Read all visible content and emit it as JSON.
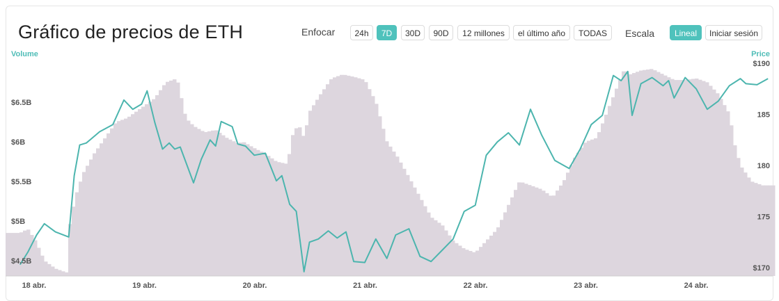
{
  "header": {
    "title": "Gráfico de precios de ETH",
    "zoom_label": "Enfocar",
    "zoom_options": [
      "24h",
      "7D",
      "30D",
      "90D",
      "12 millones",
      "el último año",
      "TODAS"
    ],
    "zoom_active": "7D",
    "scale_label": "Escala",
    "scale_options": [
      "Lineal",
      "Iniciar sesión"
    ],
    "scale_active": "Lineal"
  },
  "colors": {
    "accent": "#4fc2bc",
    "volume_fill": "#ddd6de",
    "price_line": "#4cb5ae"
  },
  "chart_data": {
    "type": "line",
    "x_ticks": [
      "18 abr.",
      "19 abr.",
      "20 abr.",
      "21 abr.",
      "22 abr.",
      "23 abr.",
      "24 abr."
    ],
    "price_axis": {
      "label": "Price",
      "ticks": [
        "$190",
        "185",
        "180",
        "175",
        "$170"
      ],
      "tick_values": [
        190,
        185,
        180,
        175,
        170
      ],
      "range": [
        169.5,
        191
      ]
    },
    "volume_axis": {
      "label": "Volume",
      "ticks": [
        "$6.5B",
        "$6B",
        "$5.5B",
        "$5B",
        "$4.5B"
      ],
      "tick_values": [
        6.5,
        6.0,
        5.5,
        5.0,
        4.5
      ],
      "range": [
        4.3,
        7.0
      ]
    },
    "series": [
      {
        "name": "Price",
        "x": [
          17.98,
          18.05,
          18.13,
          18.2,
          18.3,
          18.42,
          18.47,
          18.52,
          18.58,
          18.7,
          18.82,
          18.92,
          19.0,
          19.08,
          19.13,
          19.2,
          19.27,
          19.33,
          19.38,
          19.43,
          19.55,
          19.62,
          19.7,
          19.75,
          19.8,
          19.9,
          19.95,
          20.02,
          20.1,
          20.2,
          20.3,
          20.35,
          20.42,
          20.48,
          20.55,
          20.6,
          20.68,
          20.77,
          20.85,
          20.93,
          21.0,
          21.1,
          21.2,
          21.3,
          21.38,
          21.5,
          21.6,
          21.7,
          21.8,
          21.9,
          22.0,
          22.1,
          22.2,
          22.3,
          22.4,
          22.5,
          22.6,
          22.7,
          22.82,
          22.95,
          23.05,
          23.15,
          23.25,
          23.35,
          23.42,
          23.48,
          23.52,
          23.6,
          23.7,
          23.8,
          23.85,
          23.9,
          24.0,
          24.1,
          24.2,
          24.3,
          24.4,
          24.5,
          24.55,
          24.65,
          24.75
        ],
        "values": [
          170.3,
          171.5,
          173.2,
          174.3,
          173.5,
          173.0,
          179.0,
          182.0,
          182.2,
          183.3,
          184.0,
          186.4,
          185.5,
          186.0,
          187.3,
          184.2,
          181.6,
          182.2,
          181.6,
          181.8,
          178.3,
          180.6,
          182.5,
          181.9,
          184.3,
          183.8,
          182.1,
          181.9,
          181.0,
          181.2,
          178.5,
          179.0,
          176.2,
          175.5,
          169.6,
          172.5,
          172.8,
          173.6,
          172.9,
          173.5,
          170.6,
          170.5,
          172.8,
          170.9,
          173.2,
          173.8,
          171.1,
          170.6,
          171.7,
          172.8,
          175.5,
          176.1,
          181.0,
          182.3,
          183.2,
          182.0,
          185.5,
          183.0,
          180.5,
          179.7,
          181.6,
          184.0,
          184.9,
          188.8,
          188.3,
          189.2,
          184.9,
          188.0,
          188.6,
          187.8,
          188.3,
          186.6,
          188.6,
          187.5,
          185.5,
          186.3,
          187.8,
          188.5,
          188.0,
          187.9,
          188.5
        ]
      },
      {
        "name": "Volume",
        "x": [
          17.98,
          18.05,
          18.12,
          18.2,
          18.3,
          18.4,
          18.43,
          18.48,
          18.55,
          18.65,
          18.75,
          18.85,
          18.95,
          19.0,
          19.1,
          19.2,
          19.3,
          19.4,
          19.48,
          19.55,
          19.65,
          19.75,
          19.85,
          19.95,
          20.0,
          20.1,
          20.2,
          20.3,
          20.4,
          20.45,
          20.5,
          20.55,
          20.6,
          20.7,
          20.8,
          20.9,
          21.0,
          21.1,
          21.2,
          21.3,
          21.4,
          21.5,
          21.6,
          21.7,
          21.8,
          21.9,
          22.0,
          22.1,
          22.2,
          22.3,
          22.4,
          22.5,
          22.6,
          22.7,
          22.8,
          22.9,
          23.0,
          23.1,
          23.2,
          23.3,
          23.45,
          23.5,
          23.6,
          23.7,
          23.8,
          23.9,
          24.0,
          24.1,
          24.2,
          24.3,
          24.4,
          24.45,
          24.5,
          24.6,
          24.7,
          24.75
        ],
        "values": [
          4.85,
          4.9,
          4.75,
          4.5,
          4.4,
          4.35,
          4.95,
          5.3,
          5.6,
          5.85,
          6.05,
          6.25,
          6.3,
          6.35,
          6.45,
          6.55,
          6.75,
          6.8,
          6.3,
          6.2,
          6.12,
          6.15,
          6.05,
          5.98,
          6.0,
          5.92,
          5.85,
          5.75,
          5.72,
          6.1,
          6.22,
          6.05,
          6.38,
          6.6,
          6.8,
          6.85,
          6.82,
          6.78,
          6.5,
          6.0,
          5.8,
          5.55,
          5.3,
          5.05,
          4.95,
          4.75,
          4.65,
          4.6,
          4.75,
          4.9,
          5.2,
          5.5,
          5.45,
          5.4,
          5.3,
          5.5,
          5.8,
          6.0,
          6.05,
          6.4,
          6.92,
          6.85,
          6.9,
          6.92,
          6.85,
          6.78,
          6.78,
          6.8,
          6.75,
          6.6,
          6.35,
          5.95,
          5.7,
          5.5,
          5.45,
          5.45
        ]
      }
    ],
    "grid": false
  }
}
